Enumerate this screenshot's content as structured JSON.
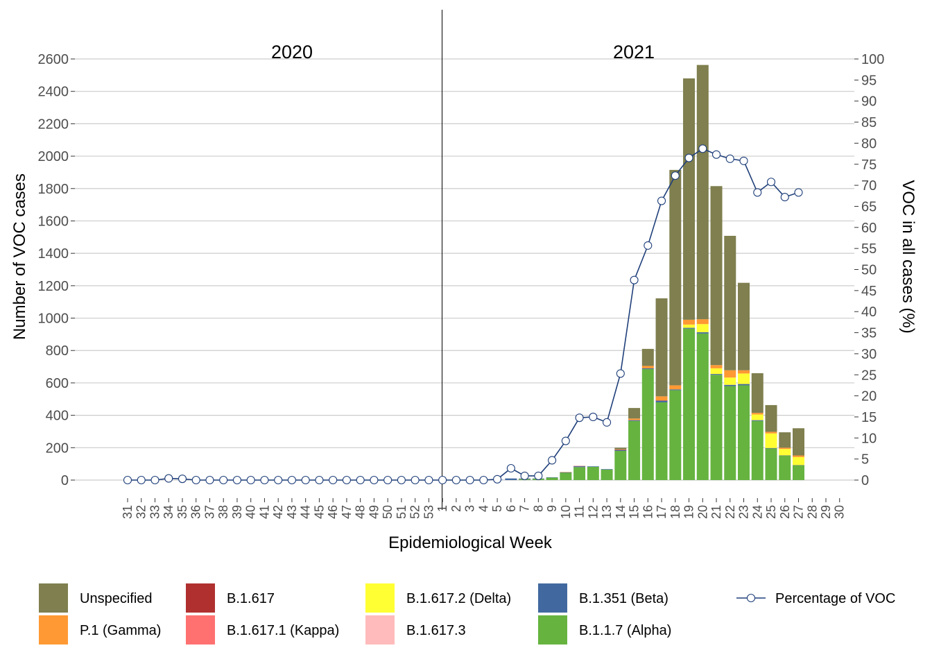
{
  "chart_data": {
    "type": "bar",
    "year_labels": [
      "2020",
      "2021"
    ],
    "xlabel": "Epidemiological Week",
    "ylabel": "Number of VOC cases",
    "y2label": "VOC in all cases (%)",
    "ylim": [
      0,
      2600
    ],
    "y_ticks": [
      0,
      200,
      400,
      600,
      800,
      1000,
      1200,
      1400,
      1600,
      1800,
      2000,
      2200,
      2400,
      2600
    ],
    "y2lim": [
      0,
      100
    ],
    "y2_ticks": [
      0,
      5,
      10,
      15,
      20,
      25,
      30,
      35,
      40,
      45,
      50,
      55,
      60,
      65,
      70,
      75,
      80,
      85,
      90,
      95,
      100
    ],
    "grid": true,
    "stacked": true,
    "categories": [
      "31",
      "32",
      "33",
      "34",
      "35",
      "36",
      "37",
      "38",
      "39",
      "40",
      "41",
      "42",
      "43",
      "44",
      "45",
      "46",
      "47",
      "48",
      "49",
      "50",
      "51",
      "52",
      "53",
      "1",
      "2",
      "3",
      "4",
      "5",
      "6",
      "7",
      "8",
      "9",
      "10",
      "11",
      "12",
      "13",
      "14",
      "15",
      "16",
      "17",
      "18",
      "19",
      "20",
      "21",
      "22",
      "23",
      "24",
      "25",
      "26",
      "27",
      "28",
      "29",
      "30"
    ],
    "series": [
      {
        "name": "B.1.1.7 (Alpha)",
        "color": "#66b340",
        "values": [
          0,
          0,
          0,
          0,
          0,
          0,
          0,
          0,
          0,
          0,
          0,
          0,
          0,
          0,
          0,
          0,
          0,
          0,
          0,
          0,
          0,
          0,
          0,
          0,
          0,
          0,
          0,
          0,
          0,
          5,
          8,
          15,
          45,
          80,
          82,
          65,
          180,
          365,
          685,
          480,
          555,
          935,
          905,
          650,
          580,
          585,
          365,
          195,
          150,
          90,
          0,
          0,
          0
        ]
      },
      {
        "name": "B.1.351 (Beta)",
        "color": "#4169a0",
        "values": [
          0,
          0,
          0,
          0,
          0,
          0,
          0,
          0,
          0,
          0,
          0,
          0,
          0,
          0,
          0,
          0,
          0,
          0,
          0,
          0,
          0,
          0,
          0,
          0,
          0,
          0,
          0,
          2,
          10,
          3,
          2,
          2,
          3,
          5,
          3,
          3,
          5,
          5,
          5,
          10,
          5,
          5,
          8,
          5,
          8,
          8,
          5,
          3,
          2,
          2,
          0,
          0,
          0
        ]
      },
      {
        "name": "B.1.617",
        "color": "#b03030",
        "values": [
          0,
          0,
          0,
          0,
          0,
          0,
          0,
          0,
          0,
          0,
          0,
          0,
          0,
          0,
          0,
          0,
          0,
          0,
          0,
          0,
          0,
          0,
          0,
          0,
          0,
          0,
          0,
          0,
          0,
          0,
          0,
          0,
          0,
          2,
          0,
          0,
          3,
          0,
          0,
          2,
          0,
          0,
          0,
          0,
          0,
          0,
          0,
          0,
          0,
          0,
          0,
          0,
          0
        ]
      },
      {
        "name": "B.1.617.1 (Kappa)",
        "color": "#ff7070",
        "values": [
          0,
          0,
          0,
          0,
          0,
          0,
          0,
          0,
          0,
          0,
          0,
          0,
          0,
          0,
          0,
          0,
          0,
          0,
          0,
          0,
          0,
          0,
          0,
          0,
          0,
          0,
          0,
          0,
          0,
          0,
          0,
          0,
          0,
          0,
          0,
          0,
          0,
          0,
          0,
          0,
          0,
          0,
          0,
          0,
          0,
          0,
          0,
          0,
          0,
          0,
          0,
          0,
          0
        ]
      },
      {
        "name": "B.1.617.2 (Delta)",
        "color": "#ffff33",
        "values": [
          0,
          0,
          0,
          0,
          0,
          0,
          0,
          0,
          0,
          0,
          0,
          0,
          0,
          0,
          0,
          0,
          0,
          0,
          0,
          0,
          0,
          0,
          0,
          0,
          0,
          0,
          0,
          0,
          0,
          0,
          0,
          0,
          0,
          0,
          0,
          0,
          0,
          0,
          0,
          0,
          0,
          20,
          50,
          35,
          45,
          65,
          35,
          90,
          40,
          50,
          0,
          0,
          0
        ]
      },
      {
        "name": "B.1.617.3",
        "color": "#ffbbbb",
        "values": [
          0,
          0,
          0,
          0,
          0,
          0,
          0,
          0,
          0,
          0,
          0,
          0,
          0,
          0,
          0,
          0,
          0,
          0,
          0,
          0,
          0,
          0,
          0,
          0,
          0,
          0,
          0,
          0,
          0,
          0,
          0,
          0,
          0,
          0,
          0,
          0,
          0,
          0,
          0,
          0,
          0,
          0,
          0,
          0,
          0,
          0,
          0,
          0,
          0,
          0,
          0,
          0,
          0
        ]
      },
      {
        "name": "P.1 (Gamma)",
        "color": "#ff9933",
        "values": [
          0,
          0,
          0,
          0,
          0,
          0,
          0,
          0,
          0,
          0,
          0,
          0,
          0,
          0,
          0,
          0,
          0,
          0,
          0,
          0,
          0,
          0,
          0,
          0,
          0,
          0,
          0,
          0,
          0,
          0,
          0,
          0,
          2,
          0,
          0,
          0,
          2,
          10,
          15,
          25,
          25,
          30,
          30,
          20,
          45,
          20,
          10,
          10,
          8,
          10,
          0,
          0,
          0
        ]
      },
      {
        "name": "Unspecified",
        "color": "#7f7f4f",
        "values": [
          0,
          0,
          0,
          0,
          0,
          0,
          0,
          0,
          0,
          0,
          0,
          0,
          0,
          0,
          0,
          0,
          0,
          0,
          0,
          0,
          0,
          0,
          0,
          0,
          0,
          0,
          0,
          0,
          0,
          2,
          0,
          0,
          0,
          0,
          0,
          0,
          10,
          65,
          105,
          605,
          1330,
          1490,
          1570,
          1105,
          830,
          540,
          245,
          165,
          95,
          168,
          0,
          0,
          0
        ]
      }
    ],
    "line": {
      "name": "Percentage of VOC",
      "color": "#1f3f7a",
      "values": [
        0,
        0,
        0,
        0.4,
        0.3,
        0,
        0,
        0,
        0,
        0,
        0,
        0,
        0,
        0,
        0,
        0,
        0,
        0,
        0,
        0,
        0,
        0,
        0,
        0,
        0,
        0,
        0,
        0.2,
        2.8,
        1,
        1,
        4.7,
        9.3,
        14.8,
        15,
        13.7,
        25.3,
        47.5,
        55.7,
        66.3,
        72.3,
        76.5,
        78.7,
        77.3,
        76.3,
        75.8,
        68.3,
        70.8,
        67.2,
        68.3,
        null,
        null,
        null
      ]
    },
    "legend": {
      "position": "bottom",
      "items": [
        {
          "label": "Unspecified",
          "color": "#7f7f4f",
          "kind": "box"
        },
        {
          "label": "B.1.617",
          "color": "#b03030",
          "kind": "box"
        },
        {
          "label": "B.1.617.2 (Delta)",
          "color": "#ffff33",
          "kind": "box"
        },
        {
          "label": "B.1.351 (Beta)",
          "color": "#4169a0",
          "kind": "box"
        },
        {
          "label": "Percentage of VOC",
          "color": "#1f3f7a",
          "kind": "line"
        },
        {
          "label": "P.1 (Gamma)",
          "color": "#ff9933",
          "kind": "box"
        },
        {
          "label": "B.1.617.1 (Kappa)",
          "color": "#ff7070",
          "kind": "box"
        },
        {
          "label": "B.1.617.3",
          "color": "#ffbbbb",
          "kind": "box"
        },
        {
          "label": "B.1.1.7 (Alpha)",
          "color": "#66b340",
          "kind": "box"
        }
      ]
    }
  }
}
